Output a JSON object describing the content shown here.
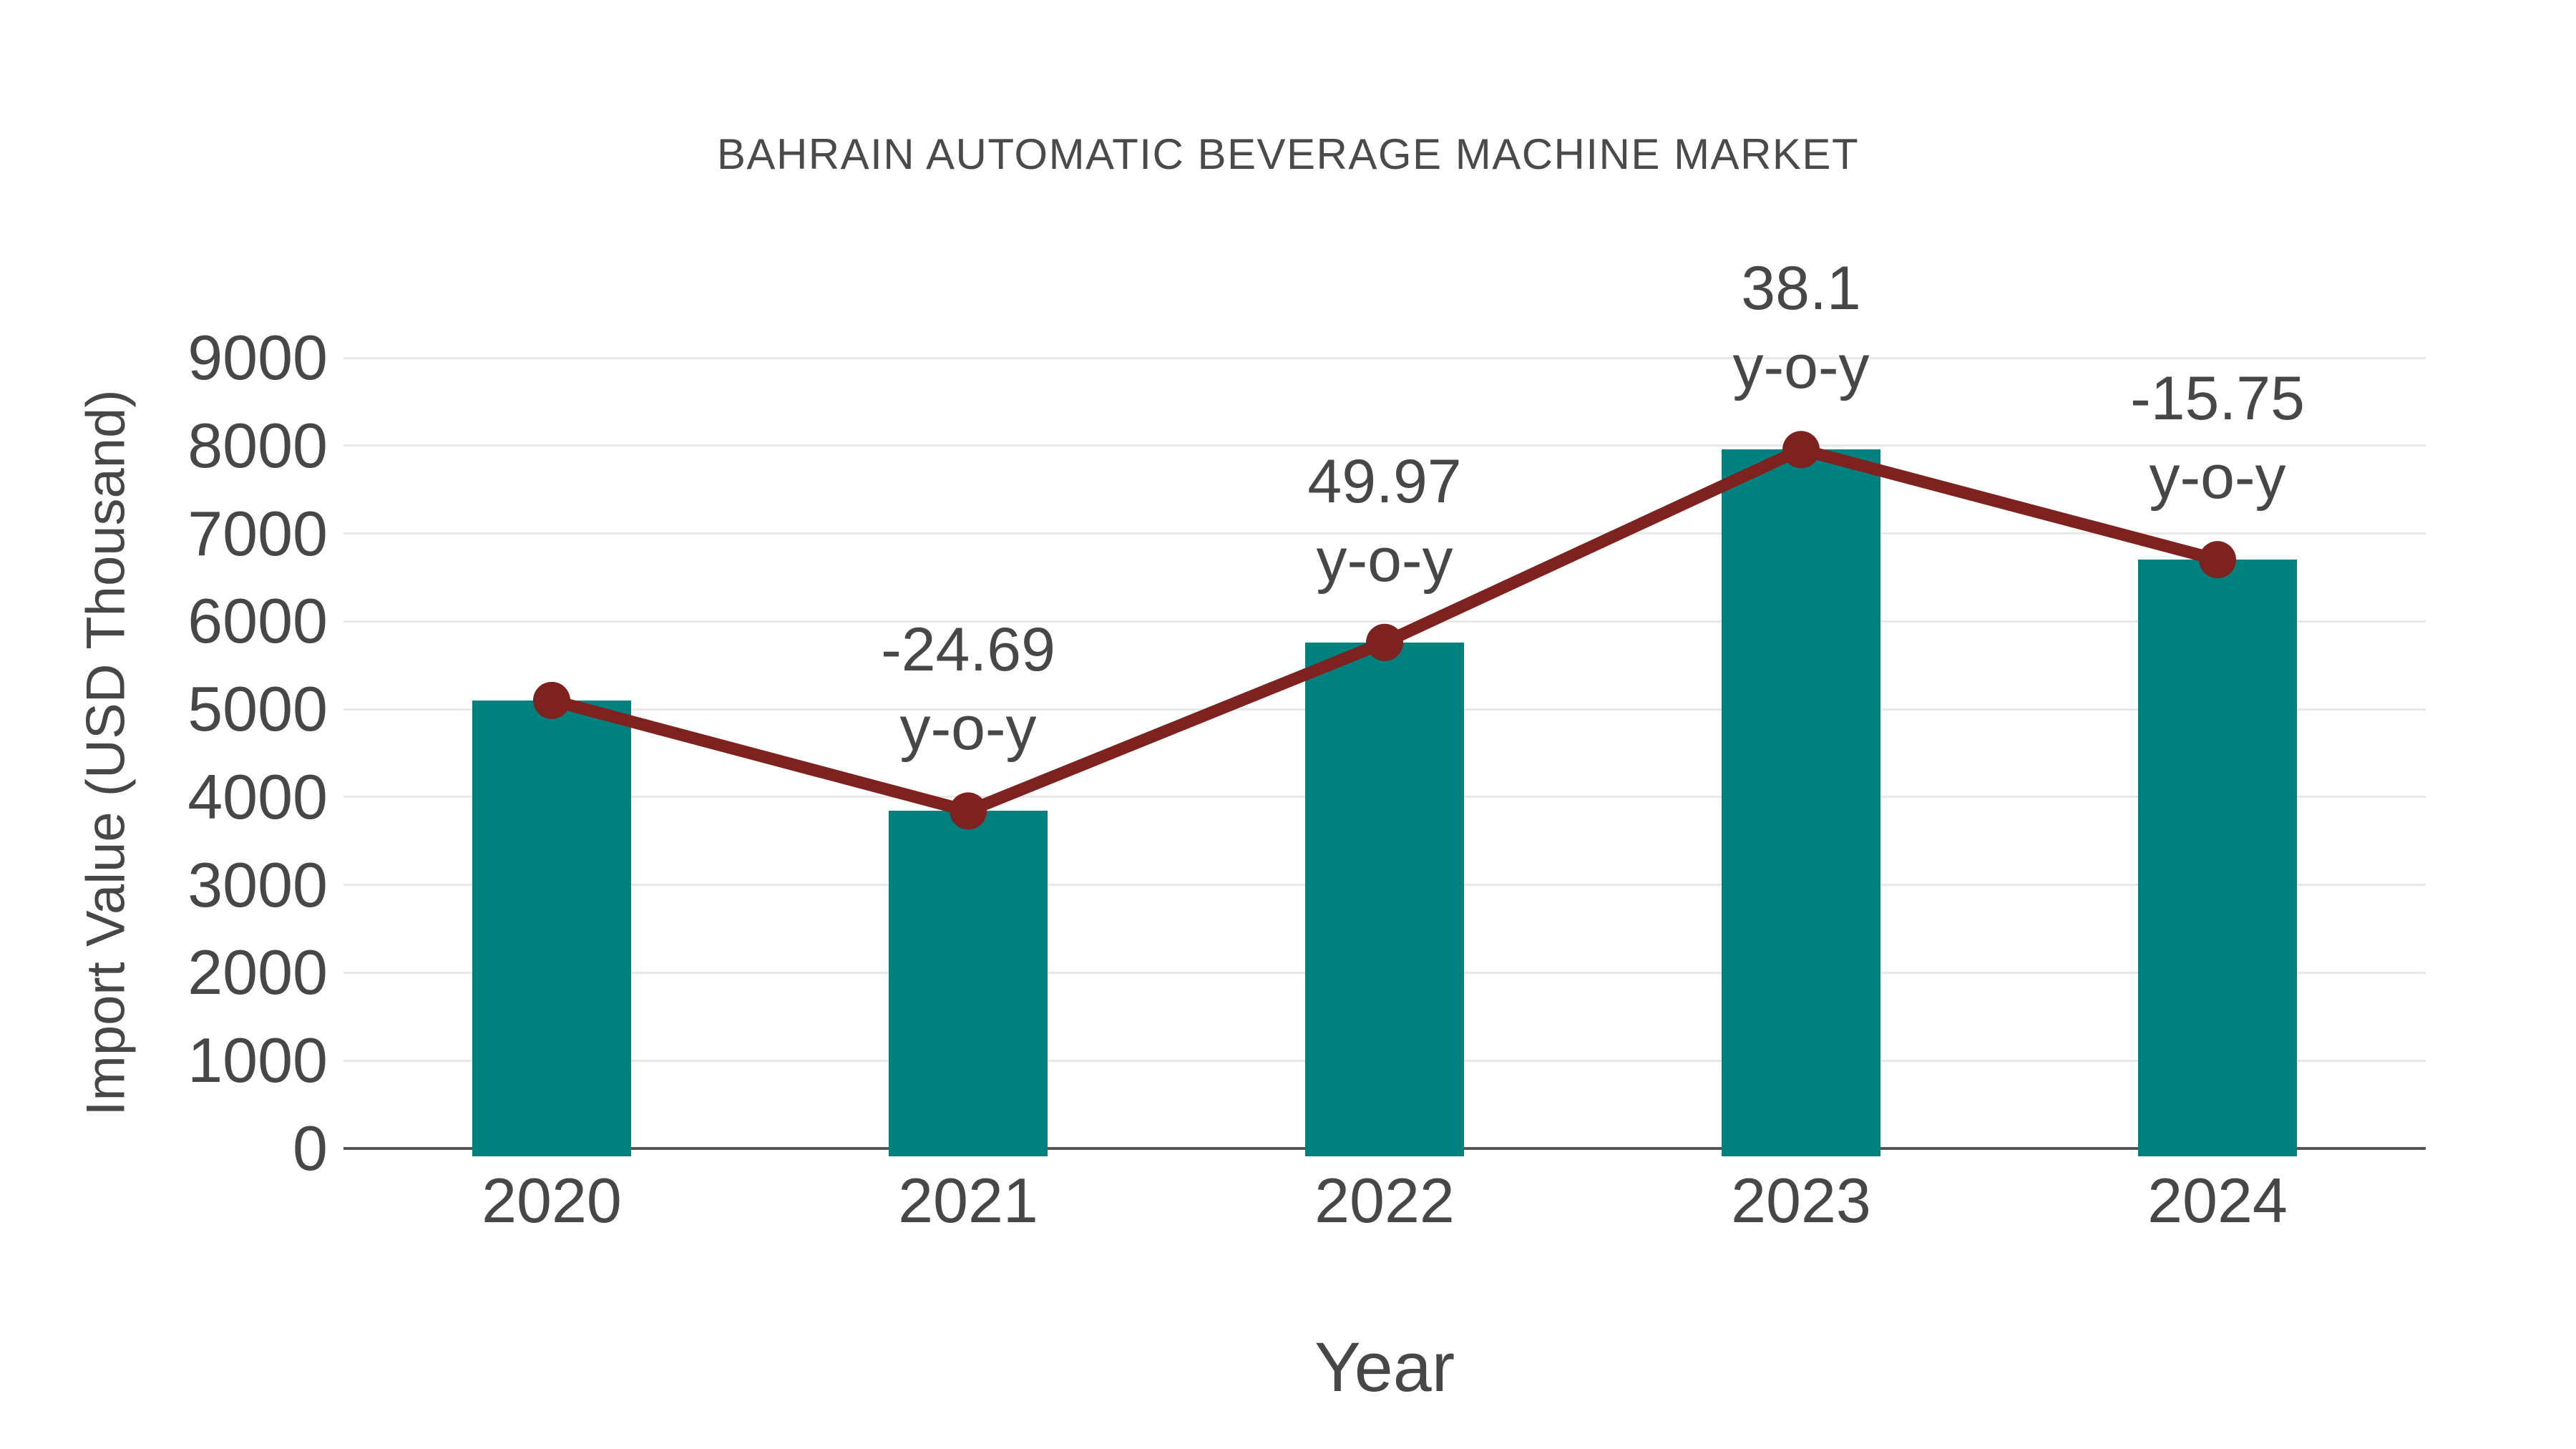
{
  "chart_data": {
    "type": "bar",
    "title": "BAHRAIN AUTOMATIC BEVERAGE MACHINE MARKET",
    "xlabel": "Year",
    "ylabel": "Import Value (USD Thousand)",
    "categories": [
      "2020",
      "2021",
      "2022",
      "2023",
      "2024"
    ],
    "series": [
      {
        "name": "Import Value (USD Thousand)",
        "render": "bar",
        "color": "#00807E",
        "values": [
          5100,
          3841,
          5760,
          7955,
          6702
        ]
      },
      {
        "name": "y-o-y trend line",
        "render": "line",
        "color": "#7E2220",
        "marker": "circle",
        "values": [
          5100,
          3841,
          5760,
          7955,
          6702
        ]
      }
    ],
    "annotations": [
      {
        "category": "2021",
        "line1": "-24.69",
        "line2": "y-o-y"
      },
      {
        "category": "2022",
        "line1": "49.97",
        "line2": "y-o-y"
      },
      {
        "category": "2023",
        "line1": "38.1",
        "line2": "y-o-y"
      },
      {
        "category": "2024",
        "line1": "-15.75",
        "line2": "y-o-y"
      }
    ],
    "ylim": [
      0,
      9000
    ],
    "ytick_step": 1000,
    "ytick_labels": [
      "0",
      "1000",
      "2000",
      "3000",
      "4000",
      "5000",
      "6000",
      "7000",
      "8000",
      "9000"
    ],
    "grid": true,
    "legend_position": "none",
    "colors": {
      "bar": "#00807E",
      "line": "#7E2220",
      "text": "#474747",
      "axis": "#555555",
      "gridline": "#e8e8e8",
      "background": "#ffffff"
    }
  }
}
